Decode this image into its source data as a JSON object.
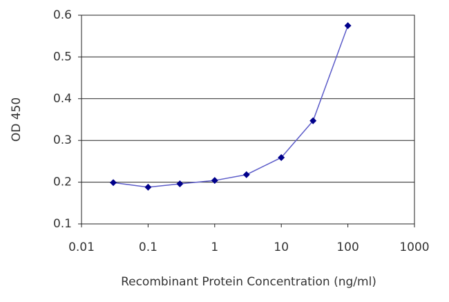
{
  "chart_data": {
    "type": "line",
    "x_label": "Recombinant Protein Concentration (ng/ml)",
    "y_label": "OD 450",
    "x": [
      0.03,
      0.1,
      0.3,
      1,
      3,
      10,
      30,
      100
    ],
    "series": [
      {
        "color": "#00008b",
        "line_color": "#5a5ac8",
        "values": [
          0.199,
          0.188,
          0.196,
          0.204,
          0.218,
          0.259,
          0.347,
          0.575
        ]
      }
    ],
    "x_log": true,
    "xlim": [
      0.01,
      1000
    ],
    "xticks": [
      0.01,
      0.1,
      1,
      10,
      100,
      1000
    ],
    "ylim": [
      0.1,
      0.6
    ],
    "yticks": [
      0.1,
      0.2,
      0.3,
      0.4,
      0.5,
      0.6
    ],
    "grid": true
  }
}
